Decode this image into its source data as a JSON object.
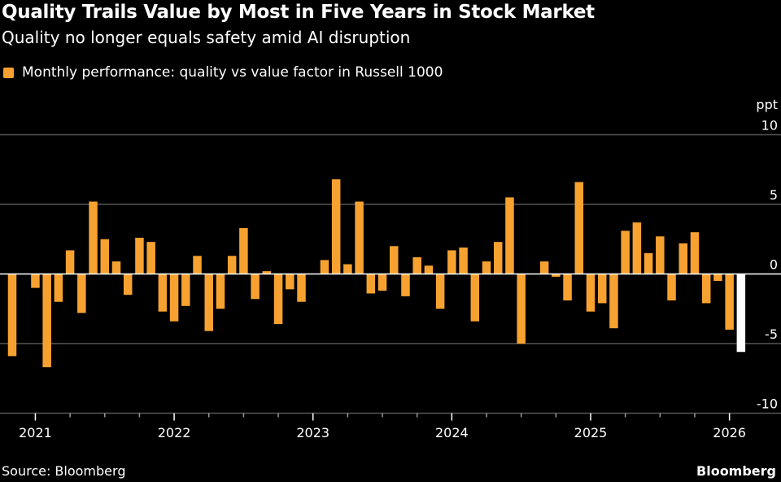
{
  "header": {
    "title": "Quality Trails Value by Most in Five Years in Stock Market",
    "subtitle": "Quality no longer equals safety amid AI disruption"
  },
  "footer": {
    "source": "Source: Bloomberg",
    "brand": "Bloomberg"
  },
  "colors": {
    "bar": "#f7a230",
    "highlight": "#ffffff",
    "background": "#000000",
    "grid": "#555555",
    "zero_line": "#ffffff"
  },
  "chart_data": {
    "type": "bar",
    "title": "",
    "legend": [
      {
        "name": "Monthly performance: quality vs value factor in Russell 1000",
        "color": "#f7a230"
      }
    ],
    "legend_placement": "top-left",
    "ylabel": "ppt",
    "ylim": [
      -10,
      10
    ],
    "yticks": [
      10,
      5,
      0,
      -5,
      -10
    ],
    "ytick_labels": [
      "10",
      "5",
      "0",
      "-5",
      "-10"
    ],
    "grid": true,
    "y_axis_side": "right",
    "xtick_labels": [
      "2021",
      "2022",
      "2023",
      "2024",
      "2025",
      "2026"
    ],
    "categories": [
      "2020-11",
      "2020-12",
      "2021-01",
      "2021-02",
      "2021-03",
      "2021-04",
      "2021-05",
      "2021-06",
      "2021-07",
      "2021-08",
      "2021-09",
      "2021-10",
      "2021-11",
      "2021-12",
      "2022-01",
      "2022-02",
      "2022-03",
      "2022-04",
      "2022-05",
      "2022-06",
      "2022-07",
      "2022-08",
      "2022-09",
      "2022-10",
      "2022-11",
      "2022-12",
      "2023-01",
      "2023-02",
      "2023-03",
      "2023-04",
      "2023-05",
      "2023-06",
      "2023-07",
      "2023-08",
      "2023-09",
      "2023-10",
      "2023-11",
      "2023-12",
      "2024-01",
      "2024-02",
      "2024-03",
      "2024-04",
      "2024-05",
      "2024-06",
      "2024-07",
      "2024-08",
      "2024-09",
      "2024-10",
      "2024-11",
      "2024-12",
      "2025-01",
      "2025-02",
      "2025-03",
      "2025-04",
      "2025-05",
      "2025-06",
      "2025-07",
      "2025-08",
      "2025-09",
      "2025-10",
      "2025-11",
      "2025-12",
      "2026-01",
      "2026-02"
    ],
    "values": [
      -5.9,
      0,
      -1.0,
      -6.7,
      -2.0,
      1.7,
      -2.8,
      5.2,
      2.5,
      0.9,
      -1.5,
      2.6,
      2.3,
      -2.7,
      -3.4,
      -2.3,
      1.3,
      -4.1,
      -2.5,
      1.3,
      3.3,
      -1.8,
      0.2,
      -3.6,
      -1.1,
      -2.0,
      0,
      1.0,
      6.8,
      0.7,
      5.2,
      -1.4,
      -1.2,
      2.0,
      -1.6,
      1.2,
      0.6,
      -2.5,
      1.7,
      1.9,
      -3.4,
      0.9,
      2.3,
      5.5,
      -5.0,
      0,
      0.9,
      -0.2,
      -1.9,
      6.6,
      -2.7,
      -2.1,
      -3.9,
      3.1,
      3.7,
      1.5,
      2.7,
      -1.9,
      2.2,
      3.0,
      -2.1,
      -0.5,
      -4.0,
      -5.6
    ],
    "highlighted_category": "2026-02"
  }
}
